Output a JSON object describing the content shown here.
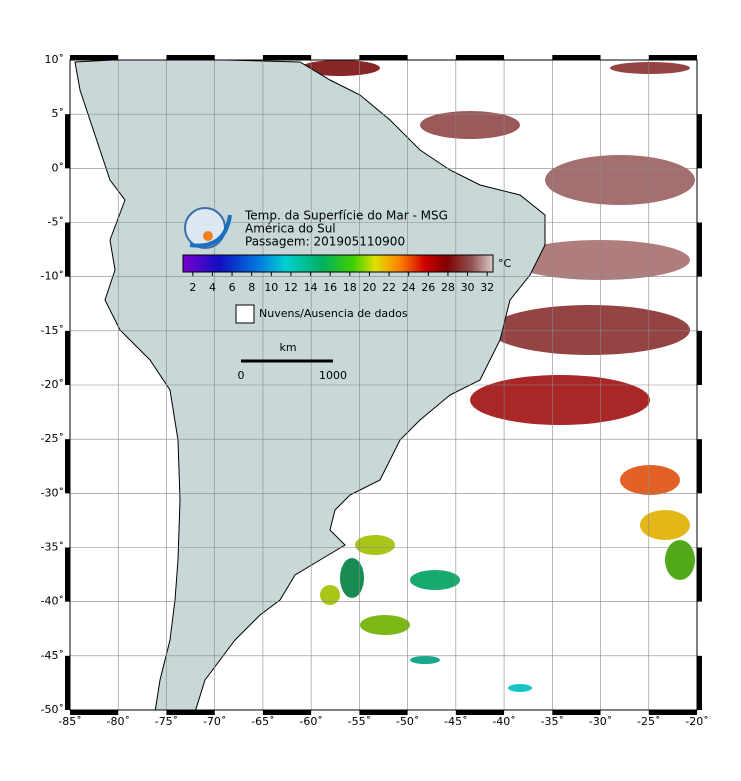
{
  "title_lines": [
    "Temp. da Superfície do Mar - MSG",
    "América do Sul",
    "Passagem: 201905110900"
  ],
  "colorbar": {
    "unit": "°C",
    "lim": [
      1,
      33
    ],
    "ticks": [
      2,
      4,
      6,
      8,
      10,
      12,
      14,
      16,
      18,
      20,
      22,
      24,
      26,
      28,
      30,
      32
    ]
  },
  "legend": "Nuvens/Ausencia de dados",
  "scale_bar": {
    "unit": "km",
    "labels": [
      "0",
      "1000"
    ]
  },
  "map": {
    "lonlim": [
      -85,
      -20
    ],
    "latlim": [
      -50,
      10
    ],
    "lonticks": [
      {
        "value": -85,
        "label": "-85˚"
      },
      {
        "value": -80,
        "label": "-80˚"
      },
      {
        "value": -75,
        "label": "-75˚"
      },
      {
        "value": -70,
        "label": "-70˚"
      },
      {
        "value": -65,
        "label": "-65˚"
      },
      {
        "value": -60,
        "label": "-60˚"
      },
      {
        "value": -55,
        "label": "-55˚"
      },
      {
        "value": -50,
        "label": "-50˚"
      },
      {
        "value": -45,
        "label": "-45˚"
      },
      {
        "value": -40,
        "label": "-40˚"
      },
      {
        "value": -35,
        "label": "-35˚"
      },
      {
        "value": -30,
        "label": "-30˚"
      },
      {
        "value": -25,
        "label": "-25˚"
      },
      {
        "value": -20,
        "label": "-20˚"
      }
    ],
    "latticks": [
      {
        "value": 10,
        "label": "10˚"
      },
      {
        "value": 5,
        "label": "5˚"
      },
      {
        "value": 0,
        "label": "0˚"
      },
      {
        "value": -5,
        "label": "-5˚"
      },
      {
        "value": -10,
        "label": "-10˚"
      },
      {
        "value": -15,
        "label": "-15˚"
      },
      {
        "value": -20,
        "label": "-20˚"
      },
      {
        "value": -25,
        "label": "-25˚"
      },
      {
        "value": -30,
        "label": "-30˚"
      },
      {
        "value": -35,
        "label": "-35˚"
      },
      {
        "value": -40,
        "label": "-40˚"
      },
      {
        "value": -45,
        "label": "-45˚"
      },
      {
        "value": -50,
        "label": "-50˚"
      }
    ]
  }
}
